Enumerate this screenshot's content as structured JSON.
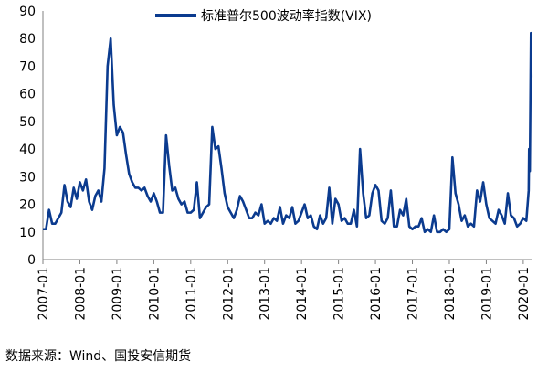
{
  "chart_data": {
    "type": "line",
    "title": "",
    "xlabel": "",
    "ylabel": "",
    "ylim": [
      0,
      90
    ],
    "yticks": [
      0,
      10,
      20,
      30,
      40,
      50,
      60,
      70,
      80,
      90
    ],
    "xlim": [
      "2007-01",
      "2020-04"
    ],
    "xticks": [
      "2007-01",
      "2008-01",
      "2009-01",
      "2010-01",
      "2011-01",
      "2012-01",
      "2013-01",
      "2014-01",
      "2015-01",
      "2016-01",
      "2017-01",
      "2018-01",
      "2019-01",
      "2020-01"
    ],
    "grid": false,
    "legend_position": "top",
    "series": [
      {
        "name": "标准普尔500波动率指数(VIX)",
        "color": "#0b3b8f",
        "points": [
          [
            "2007-01",
            11
          ],
          [
            "2007-02",
            11
          ],
          [
            "2007-03",
            18
          ],
          [
            "2007-04",
            13
          ],
          [
            "2007-05",
            13
          ],
          [
            "2007-06",
            15
          ],
          [
            "2007-07",
            17
          ],
          [
            "2007-08",
            27
          ],
          [
            "2007-09",
            21
          ],
          [
            "2007-10",
            19
          ],
          [
            "2007-11",
            26
          ],
          [
            "2007-12",
            22
          ],
          [
            "2008-01",
            28
          ],
          [
            "2008-02",
            25
          ],
          [
            "2008-03",
            29
          ],
          [
            "2008-04",
            21
          ],
          [
            "2008-05",
            18
          ],
          [
            "2008-06",
            23
          ],
          [
            "2008-07",
            25
          ],
          [
            "2008-08",
            21
          ],
          [
            "2008-09",
            33
          ],
          [
            "2008-10",
            70
          ],
          [
            "2008-11",
            80
          ],
          [
            "2008-12",
            56
          ],
          [
            "2009-01",
            45
          ],
          [
            "2009-02",
            48
          ],
          [
            "2009-03",
            46
          ],
          [
            "2009-04",
            38
          ],
          [
            "2009-05",
            31
          ],
          [
            "2009-06",
            28
          ],
          [
            "2009-07",
            26
          ],
          [
            "2009-08",
            26
          ],
          [
            "2009-09",
            25
          ],
          [
            "2009-10",
            26
          ],
          [
            "2009-11",
            23
          ],
          [
            "2009-12",
            21
          ],
          [
            "2010-01",
            24
          ],
          [
            "2010-02",
            21
          ],
          [
            "2010-03",
            17
          ],
          [
            "2010-04",
            17
          ],
          [
            "2010-05",
            45
          ],
          [
            "2010-06",
            34
          ],
          [
            "2010-07",
            25
          ],
          [
            "2010-08",
            26
          ],
          [
            "2010-09",
            22
          ],
          [
            "2010-10",
            20
          ],
          [
            "2010-11",
            21
          ],
          [
            "2010-12",
            17
          ],
          [
            "2011-01",
            17
          ],
          [
            "2011-02",
            18
          ],
          [
            "2011-03",
            28
          ],
          [
            "2011-04",
            15
          ],
          [
            "2011-05",
            17
          ],
          [
            "2011-06",
            19
          ],
          [
            "2011-07",
            20
          ],
          [
            "2011-08",
            48
          ],
          [
            "2011-09",
            40
          ],
          [
            "2011-10",
            41
          ],
          [
            "2011-11",
            33
          ],
          [
            "2011-12",
            24
          ],
          [
            "2012-01",
            19
          ],
          [
            "2012-02",
            17
          ],
          [
            "2012-03",
            15
          ],
          [
            "2012-04",
            18
          ],
          [
            "2012-05",
            23
          ],
          [
            "2012-06",
            21
          ],
          [
            "2012-07",
            18
          ],
          [
            "2012-08",
            15
          ],
          [
            "2012-09",
            15
          ],
          [
            "2012-10",
            17
          ],
          [
            "2012-11",
            16
          ],
          [
            "2012-12",
            20
          ],
          [
            "2013-01",
            13
          ],
          [
            "2013-02",
            14
          ],
          [
            "2013-03",
            13
          ],
          [
            "2013-04",
            15
          ],
          [
            "2013-05",
            14
          ],
          [
            "2013-06",
            19
          ],
          [
            "2013-07",
            13
          ],
          [
            "2013-08",
            16
          ],
          [
            "2013-09",
            15
          ],
          [
            "2013-10",
            19
          ],
          [
            "2013-11",
            13
          ],
          [
            "2013-12",
            14
          ],
          [
            "2014-01",
            17
          ],
          [
            "2014-02",
            20
          ],
          [
            "2014-03",
            15
          ],
          [
            "2014-04",
            16
          ],
          [
            "2014-05",
            12
          ],
          [
            "2014-06",
            11
          ],
          [
            "2014-07",
            16
          ],
          [
            "2014-08",
            13
          ],
          [
            "2014-09",
            15
          ],
          [
            "2014-10",
            26
          ],
          [
            "2014-11",
            13
          ],
          [
            "2014-12",
            22
          ],
          [
            "2015-01",
            20
          ],
          [
            "2015-02",
            14
          ],
          [
            "2015-03",
            15
          ],
          [
            "2015-04",
            13
          ],
          [
            "2015-05",
            13
          ],
          [
            "2015-06",
            18
          ],
          [
            "2015-07",
            12
          ],
          [
            "2015-08",
            40
          ],
          [
            "2015-09",
            24
          ],
          [
            "2015-10",
            15
          ],
          [
            "2015-11",
            16
          ],
          [
            "2015-12",
            24
          ],
          [
            "2016-01",
            27
          ],
          [
            "2016-02",
            25
          ],
          [
            "2016-03",
            14
          ],
          [
            "2016-04",
            13
          ],
          [
            "2016-05",
            15
          ],
          [
            "2016-06",
            25
          ],
          [
            "2016-07",
            12
          ],
          [
            "2016-08",
            12
          ],
          [
            "2016-09",
            18
          ],
          [
            "2016-10",
            16
          ],
          [
            "2016-11",
            22
          ],
          [
            "2016-12",
            12
          ],
          [
            "2017-01",
            11
          ],
          [
            "2017-02",
            12
          ],
          [
            "2017-03",
            12
          ],
          [
            "2017-04",
            15
          ],
          [
            "2017-05",
            10
          ],
          [
            "2017-06",
            11
          ],
          [
            "2017-07",
            10
          ],
          [
            "2017-08",
            16
          ],
          [
            "2017-09",
            10
          ],
          [
            "2017-10",
            10
          ],
          [
            "2017-11",
            11
          ],
          [
            "2017-12",
            10
          ],
          [
            "2018-01",
            11
          ],
          [
            "2018-02",
            37
          ],
          [
            "2018-03",
            24
          ],
          [
            "2018-04",
            20
          ],
          [
            "2018-05",
            14
          ],
          [
            "2018-06",
            16
          ],
          [
            "2018-07",
            12
          ],
          [
            "2018-08",
            13
          ],
          [
            "2018-09",
            12
          ],
          [
            "2018-10",
            25
          ],
          [
            "2018-11",
            21
          ],
          [
            "2018-12",
            28
          ],
          [
            "2019-01",
            20
          ],
          [
            "2019-02",
            15
          ],
          [
            "2019-03",
            14
          ],
          [
            "2019-04",
            13
          ],
          [
            "2019-05",
            18
          ],
          [
            "2019-06",
            16
          ],
          [
            "2019-07",
            13
          ],
          [
            "2019-08",
            24
          ],
          [
            "2019-09",
            16
          ],
          [
            "2019-10",
            15
          ],
          [
            "2019-11",
            12
          ],
          [
            "2019-12",
            13
          ],
          [
            "2020-01",
            15
          ],
          [
            "2020-02",
            14
          ],
          [
            "2020-02-24",
            25
          ],
          [
            "2020-02-28",
            40
          ],
          [
            "2020-03-05",
            32
          ],
          [
            "2020-03-16",
            82
          ],
          [
            "2020-03-20",
            66
          ]
        ]
      }
    ]
  },
  "source_note": "数据来源：Wind、国投安信期货"
}
